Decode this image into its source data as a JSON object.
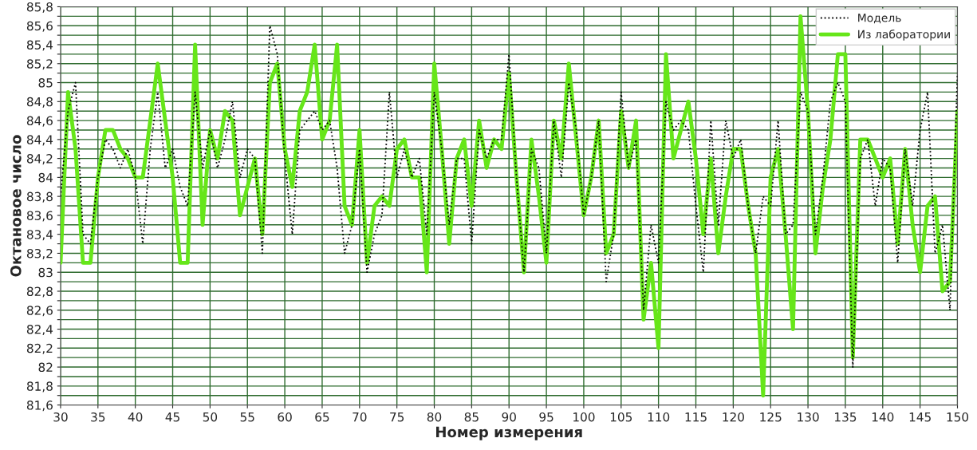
{
  "chart_data": {
    "type": "line",
    "xlabel": "Номер измерения",
    "ylabel": "Октановое число",
    "x": [
      30,
      31,
      32,
      33,
      34,
      35,
      36,
      37,
      38,
      39,
      40,
      41,
      42,
      43,
      44,
      45,
      46,
      47,
      48,
      49,
      50,
      51,
      52,
      53,
      54,
      55,
      56,
      57,
      58,
      59,
      60,
      61,
      62,
      63,
      64,
      65,
      66,
      67,
      68,
      69,
      70,
      71,
      72,
      73,
      74,
      75,
      76,
      77,
      78,
      79,
      80,
      81,
      82,
      83,
      84,
      85,
      86,
      87,
      88,
      89,
      90,
      91,
      92,
      93,
      94,
      95,
      96,
      97,
      98,
      99,
      100,
      101,
      102,
      103,
      104,
      105,
      106,
      107,
      108,
      109,
      110,
      111,
      112,
      113,
      114,
      115,
      116,
      117,
      118,
      119,
      120,
      121,
      122,
      123,
      124,
      125,
      126,
      127,
      128,
      129,
      130,
      131,
      132,
      133,
      134,
      135,
      136,
      137,
      138,
      139,
      140,
      141,
      142,
      143,
      144,
      145,
      146,
      147,
      148,
      149,
      150
    ],
    "series": [
      {
        "name": "Модель",
        "color": "#000000",
        "line_style": "dotted",
        "values": [
          83.8,
          84.7,
          85.0,
          83.4,
          83.3,
          84.0,
          84.4,
          84.3,
          84.1,
          84.3,
          84.0,
          83.3,
          84.3,
          84.9,
          84.1,
          84.3,
          83.9,
          83.7,
          84.9,
          84.1,
          84.5,
          84.1,
          84.4,
          84.8,
          84.0,
          84.3,
          84.2,
          83.2,
          85.6,
          85.3,
          84.2,
          83.4,
          84.5,
          84.6,
          84.7,
          84.5,
          84.6,
          84.1,
          83.2,
          83.5,
          84.3,
          83.0,
          83.4,
          83.6,
          84.9,
          84.0,
          84.3,
          84.0,
          84.2,
          83.4,
          84.9,
          84.3,
          83.5,
          84.2,
          84.2,
          83.3,
          84.5,
          84.2,
          84.4,
          84.4,
          85.3,
          84.0,
          83.0,
          84.3,
          84.1,
          83.2,
          84.6,
          84.0,
          85.0,
          84.5,
          83.6,
          84.0,
          84.6,
          82.9,
          83.4,
          84.9,
          84.1,
          84.4,
          82.6,
          83.5,
          83.1,
          84.8,
          84.5,
          84.6,
          84.5,
          83.7,
          83.0,
          84.6,
          83.5,
          84.6,
          84.2,
          84.4,
          83.7,
          83.2,
          83.8,
          83.7,
          84.6,
          83.4,
          83.5,
          84.9,
          84.7,
          83.4,
          84.0,
          84.8,
          85.0,
          84.8,
          82.0,
          84.2,
          84.4,
          83.7,
          84.2,
          84.1,
          83.1,
          84.3,
          83.7,
          84.5,
          84.9,
          83.2,
          83.5,
          82.6,
          85.1
        ]
      },
      {
        "name": "Из лаборатории",
        "color": "#66e619",
        "line_style": "solid",
        "values": [
          83.1,
          84.9,
          84.3,
          83.1,
          83.1,
          84.0,
          84.5,
          84.5,
          84.3,
          84.2,
          84.0,
          84.0,
          84.6,
          85.2,
          84.6,
          84.0,
          83.1,
          83.1,
          85.4,
          83.5,
          84.5,
          84.2,
          84.7,
          84.6,
          83.6,
          83.9,
          84.2,
          83.4,
          85.0,
          85.2,
          84.3,
          83.9,
          84.7,
          84.9,
          85.4,
          84.4,
          84.6,
          85.4,
          83.7,
          83.5,
          84.5,
          83.1,
          83.7,
          83.8,
          83.7,
          84.3,
          84.4,
          84.0,
          84.0,
          83.0,
          85.2,
          84.3,
          83.3,
          84.2,
          84.4,
          83.7,
          84.6,
          84.1,
          84.4,
          84.3,
          85.1,
          84.0,
          83.0,
          84.4,
          83.8,
          83.1,
          84.6,
          84.2,
          85.2,
          84.4,
          83.6,
          84.0,
          84.6,
          83.2,
          83.4,
          84.7,
          84.1,
          84.6,
          82.5,
          83.1,
          82.2,
          85.3,
          84.2,
          84.5,
          84.8,
          84.2,
          83.4,
          84.2,
          83.2,
          83.8,
          84.3,
          84.3,
          83.7,
          83.2,
          81.7,
          84.0,
          84.3,
          83.4,
          82.4,
          85.7,
          84.7,
          83.2,
          83.9,
          84.4,
          85.3,
          85.3,
          82.1,
          84.4,
          84.4,
          84.2,
          84.0,
          84.2,
          83.3,
          84.3,
          83.5,
          83.0,
          83.7,
          83.8,
          82.8,
          82.9,
          84.7
        ]
      }
    ],
    "xlim": [
      30,
      150
    ],
    "xticks": [
      30,
      35,
      40,
      45,
      50,
      55,
      60,
      65,
      70,
      75,
      80,
      85,
      90,
      95,
      100,
      105,
      110,
      115,
      120,
      125,
      130,
      135,
      140,
      145,
      150
    ],
    "ylim": [
      81.6,
      85.8
    ],
    "yticks": [
      {
        "value": 81.6,
        "label": "81,6"
      },
      {
        "value": 81.7,
        "label": null
      },
      {
        "value": 81.8,
        "label": "81,8"
      },
      {
        "value": 81.9,
        "label": null
      },
      {
        "value": 82.0,
        "label": "82"
      },
      {
        "value": 82.1,
        "label": null
      },
      {
        "value": 82.2,
        "label": "82,2"
      },
      {
        "value": 82.3,
        "label": null
      },
      {
        "value": 82.4,
        "label": "82,4"
      },
      {
        "value": 82.5,
        "label": null
      },
      {
        "value": 82.6,
        "label": "82,6"
      },
      {
        "value": 82.7,
        "label": null
      },
      {
        "value": 82.8,
        "label": "82,8"
      },
      {
        "value": 82.9,
        "label": null
      },
      {
        "value": 83.0,
        "label": "83"
      },
      {
        "value": 83.1,
        "label": null
      },
      {
        "value": 83.2,
        "label": "83,2"
      },
      {
        "value": 83.3,
        "label": null
      },
      {
        "value": 83.4,
        "label": "83,4"
      },
      {
        "value": 83.5,
        "label": null
      },
      {
        "value": 83.6,
        "label": "83,6"
      },
      {
        "value": 83.7,
        "label": null
      },
      {
        "value": 83.8,
        "label": "83,8"
      },
      {
        "value": 83.9,
        "label": null
      },
      {
        "value": 84.0,
        "label": "84"
      },
      {
        "value": 84.1,
        "label": null
      },
      {
        "value": 84.2,
        "label": "84,2"
      },
      {
        "value": 84.3,
        "label": null
      },
      {
        "value": 84.4,
        "label": "84,4"
      },
      {
        "value": 84.5,
        "label": null
      },
      {
        "value": 84.6,
        "label": "84,6"
      },
      {
        "value": 84.7,
        "label": null
      },
      {
        "value": 84.8,
        "label": "84,8"
      },
      {
        "value": 84.9,
        "label": null
      },
      {
        "value": 85.0,
        "label": "85"
      },
      {
        "value": 85.1,
        "label": null
      },
      {
        "value": 85.2,
        "label": "85,2"
      },
      {
        "value": 85.3,
        "label": null
      },
      {
        "value": 85.4,
        "label": "85,4"
      },
      {
        "value": 85.5,
        "label": null
      },
      {
        "value": 85.6,
        "label": "85,6"
      },
      {
        "value": 85.7,
        "label": null
      },
      {
        "value": 85.8,
        "label": "85,8"
      }
    ],
    "grid": true,
    "legend": "top right",
    "marker": "none"
  }
}
